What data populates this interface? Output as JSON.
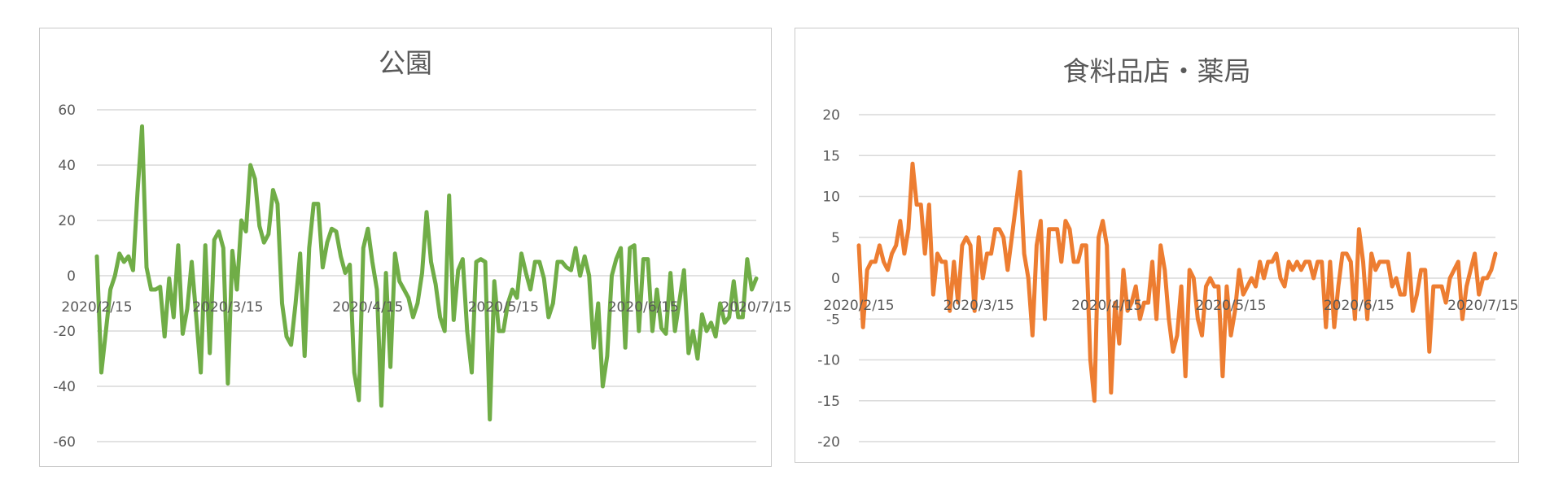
{
  "chart_data": [
    {
      "type": "line",
      "title": "公園",
      "color": "#70ad47",
      "ylim": [
        -60,
        60
      ],
      "ytick_step": 20,
      "grid": "horizontal",
      "legend": "none",
      "x_start": "2020-02-15",
      "x_tick_labels": [
        "2020/2/15",
        "2020/3/15",
        "2020/4/15",
        "2020/5/15",
        "2020/6/15",
        "2020/7/15"
      ],
      "y_tick_labels": [
        "60",
        "40",
        "20",
        "0",
        "-20",
        "-40",
        "-60"
      ],
      "series": [
        {
          "values": [
            7,
            -35,
            -20,
            -5,
            0,
            8,
            5,
            7,
            2,
            30,
            54,
            3,
            -5,
            -5,
            -4,
            -22,
            -1,
            -15,
            11,
            -21,
            -12,
            5,
            -15,
            -35,
            11,
            -28,
            13,
            16,
            10,
            -39,
            9,
            -5,
            20,
            16,
            40,
            35,
            18,
            12,
            15,
            31,
            26,
            -10,
            -22,
            -25,
            -10,
            8,
            -29,
            10,
            26,
            26,
            3,
            12,
            17,
            16,
            7,
            1,
            4,
            -35,
            -45,
            10,
            17,
            5,
            -5,
            -47,
            1,
            -33,
            8,
            -2,
            -5,
            -8,
            -15,
            -10,
            1,
            23,
            5,
            -3,
            -15,
            -20,
            29,
            -16,
            2,
            6,
            -20,
            -35,
            5,
            6,
            5,
            -52,
            -2,
            -20,
            -20,
            -10,
            -5,
            -8,
            8,
            1,
            -5,
            5,
            5,
            -1,
            -15,
            -10,
            5,
            5,
            3,
            2,
            10,
            0,
            7,
            0,
            -26,
            -10,
            -40,
            -29,
            0,
            6,
            10,
            -26,
            10,
            11,
            -20,
            6,
            6,
            -20,
            -5,
            -19,
            -21,
            1,
            -20,
            -9,
            2,
            -28,
            -20,
            -30,
            -14,
            -20,
            -17,
            -22,
            -10,
            -17,
            -15,
            -2,
            -15,
            -15,
            6,
            -5,
            -1
          ]
        }
      ]
    },
    {
      "type": "line",
      "title": "食料品店・薬局",
      "color": "#ed7d31",
      "ylim": [
        -20,
        20
      ],
      "ytick_step": 5,
      "grid": "horizontal",
      "legend": "none",
      "x_start": "2020-02-15",
      "x_tick_labels": [
        "2020/2/15",
        "2020/3/15",
        "2020/4/15",
        "2020/5/15",
        "2020/6/15",
        "2020/7/15"
      ],
      "y_tick_labels": [
        "20",
        "15",
        "10",
        "5",
        "0",
        "-5",
        "-10",
        "-15",
        "-20"
      ],
      "series": [
        {
          "values": [
            4,
            -6,
            1,
            2,
            2,
            4,
            2,
            1,
            3,
            4,
            7,
            3,
            6,
            14,
            9,
            9,
            3,
            9,
            -2,
            3,
            2,
            2,
            -4,
            2,
            -3,
            4,
            5,
            4,
            -4,
            5,
            0,
            3,
            3,
            6,
            6,
            5,
            1,
            5,
            9,
            13,
            3,
            0,
            -7,
            4,
            7,
            -5,
            6,
            6,
            6,
            2,
            7,
            6,
            2,
            2,
            4,
            4,
            -10,
            -15,
            5,
            7,
            4,
            -14,
            -3,
            -8,
            1,
            -4,
            -3,
            -1,
            -5,
            -3,
            -3,
            2,
            -5,
            4,
            1,
            -5,
            -9,
            -7,
            -1,
            -12,
            1,
            0,
            -5,
            -7,
            -1,
            0,
            -1,
            -1,
            -12,
            -1,
            -7,
            -4,
            1,
            -2,
            -1,
            0,
            -1,
            2,
            0,
            2,
            2,
            3,
            0,
            -1,
            2,
            1,
            2,
            1,
            2,
            2,
            0,
            2,
            2,
            -6,
            2,
            -6,
            -1,
            3,
            3,
            2,
            -5,
            6,
            2,
            -5,
            3,
            1,
            2,
            2,
            2,
            -1,
            0,
            -2,
            -2,
            3,
            -4,
            -2,
            1,
            1,
            -9,
            -1,
            -1,
            -1,
            -3,
            0,
            1,
            2,
            -5,
            -1,
            1,
            3,
            -2,
            0,
            0,
            1,
            3
          ]
        }
      ]
    }
  ]
}
